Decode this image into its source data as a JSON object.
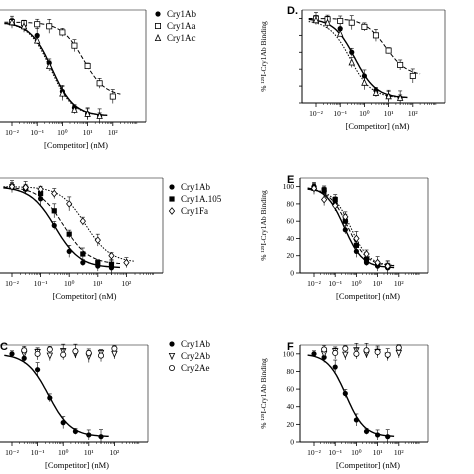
{
  "chart_data": [
    {
      "panel": "A",
      "panel_label": "",
      "type": "scatter",
      "xlabel": "[Competitor] (nM)",
      "ylabel": "",
      "x_scale": "log",
      "xlim": [
        0.01,
        1000
      ],
      "ylim": [
        0,
        110
      ],
      "x_tick_labels": [
        "10⁻²",
        "10⁻¹",
        "10⁰",
        "10¹",
        "10²"
      ],
      "y_tick_labels": [],
      "legend": [
        "Cry1Ab",
        "Cry1Aa",
        "Cry1Ac"
      ],
      "series": [
        {
          "name": "Cry1Ab",
          "marker": "filled-circle",
          "curve": "solid",
          "x": [
            0.01,
            0.03,
            0.1,
            0.3,
            1,
            3,
            10,
            30
          ],
          "y": [
            98,
            95,
            85,
            58,
            30,
            14,
            8,
            6
          ]
        },
        {
          "name": "Cry1Aa",
          "marker": "open-square",
          "curve": "dashed",
          "x": [
            0.01,
            0.03,
            0.1,
            0.3,
            1,
            3,
            10,
            30,
            100
          ],
          "y": [
            98,
            97,
            96,
            94,
            88,
            75,
            55,
            38,
            25
          ]
        },
        {
          "name": "Cry1Ac",
          "marker": "open-triangle",
          "curve": "dotted",
          "x": [
            0.01,
            0.03,
            0.1,
            0.3,
            1,
            3,
            10,
            30
          ],
          "y": [
            98,
            94,
            80,
            55,
            28,
            12,
            8,
            6
          ]
        }
      ]
    },
    {
      "panel": "D",
      "panel_label": "D.",
      "type": "scatter",
      "xlabel": "[Competitor] (nM)",
      "ylabel": "% ¹²⁵I-Cry1Ab Binding",
      "x_scale": "log",
      "xlim": [
        0.01,
        1000
      ],
      "ylim": [
        0,
        110
      ],
      "x_tick_labels": [
        "10⁻²",
        "10⁻¹",
        "10⁰",
        "10¹",
        "10²"
      ],
      "y_tick_labels": [],
      "legend": [],
      "series": [
        {
          "name": "",
          "marker": "filled-circle",
          "curve": "solid",
          "x": [
            0.01,
            0.03,
            0.1,
            0.3,
            1,
            3,
            10,
            30
          ],
          "y": [
            100,
            98,
            88,
            60,
            32,
            15,
            8,
            6
          ]
        },
        {
          "name": "",
          "marker": "open-square",
          "curve": "dashed",
          "x": [
            0.01,
            0.03,
            0.1,
            0.3,
            1,
            3,
            10,
            30,
            100
          ],
          "y": [
            100,
            99,
            97,
            95,
            90,
            80,
            62,
            45,
            32
          ]
        },
        {
          "name": "",
          "marker": "open-triangle",
          "curve": "dotted",
          "x": [
            0.01,
            0.03,
            0.1,
            0.3,
            1,
            3,
            10,
            30
          ],
          "y": [
            98,
            95,
            82,
            48,
            24,
            12,
            8,
            6
          ]
        }
      ]
    },
    {
      "panel": "B",
      "panel_label": "",
      "type": "scatter",
      "xlabel": "[Competitor] (nM)",
      "ylabel": "",
      "x_scale": "log",
      "xlim": [
        0.01,
        1000
      ],
      "ylim": [
        0,
        110
      ],
      "x_tick_labels": [
        "10⁻²",
        "10⁻¹",
        "10⁰",
        "10¹",
        "10²"
      ],
      "y_tick_labels": [],
      "legend": [
        "Cry1Ab",
        "Cry1A.105",
        "Cry1Fa"
      ],
      "series": [
        {
          "name": "Cry1Ab",
          "marker": "filled-circle",
          "curve": "solid",
          "x": [
            0.01,
            0.03,
            0.1,
            0.3,
            1,
            3,
            10,
            30
          ],
          "y": [
            100,
            97,
            86,
            55,
            25,
            12,
            8,
            6
          ]
        },
        {
          "name": "Cry1A.105",
          "marker": "filled-square",
          "curve": "dashed",
          "x": [
            0.01,
            0.03,
            0.1,
            0.3,
            1,
            3,
            10,
            30
          ],
          "y": [
            100,
            98,
            92,
            72,
            45,
            22,
            12,
            10
          ]
        },
        {
          "name": "Cry1Fa",
          "marker": "open-diamond",
          "curve": "dotted",
          "x": [
            0.01,
            0.03,
            0.1,
            0.3,
            1,
            3,
            10,
            30,
            100
          ],
          "y": [
            100,
            99,
            97,
            92,
            80,
            60,
            38,
            20,
            12
          ]
        }
      ]
    },
    {
      "panel": "E",
      "panel_label": "E",
      "type": "scatter",
      "xlabel": "[Competitor] (nM)",
      "ylabel": "% ¹²⁵I-Cry1Ab Binding",
      "x_scale": "log",
      "xlim": [
        0.01,
        1000
      ],
      "ylim": [
        0,
        110
      ],
      "x_tick_labels": [
        "10⁻²",
        "10⁻¹",
        "10⁰",
        "10¹",
        "10²"
      ],
      "y_tick_labels": [
        "0",
        "20",
        "40",
        "60",
        "80",
        "100"
      ],
      "legend": [],
      "series": [
        {
          "name": "",
          "marker": "filled-circle",
          "curve": "solid",
          "x": [
            0.01,
            0.03,
            0.1,
            0.3,
            1,
            3,
            10,
            30
          ],
          "y": [
            100,
            95,
            80,
            50,
            25,
            12,
            8,
            6
          ]
        },
        {
          "name": "",
          "marker": "filled-square",
          "curve": "dashed",
          "x": [
            0.01,
            0.03,
            0.1,
            0.3,
            1,
            3,
            10,
            30
          ],
          "y": [
            98,
            96,
            85,
            60,
            32,
            16,
            10,
            8
          ]
        },
        {
          "name": "",
          "marker": "open-diamond",
          "curve": "dotted",
          "x": [
            0.01,
            0.03,
            0.1,
            0.3,
            1,
            3,
            10,
            30
          ],
          "y": [
            98,
            85,
            78,
            65,
            40,
            22,
            12,
            8
          ]
        }
      ]
    },
    {
      "panel": "C",
      "panel_label": "C",
      "type": "scatter",
      "xlabel": "[Competitor] (nM)",
      "ylabel": "",
      "x_scale": "log",
      "xlim": [
        0.01,
        1000
      ],
      "ylim": [
        0,
        110
      ],
      "x_tick_labels": [
        "10⁻²",
        "10⁻¹",
        "10⁰",
        "10¹",
        "10²"
      ],
      "y_tick_labels": [],
      "legend": [
        "Cry1Ab",
        "Cry2Ab",
        "Cry2Ae"
      ],
      "series": [
        {
          "name": "Cry1Ab",
          "marker": "filled-circle",
          "curve": "solid",
          "x": [
            0.01,
            0.03,
            0.1,
            0.3,
            1,
            3,
            10,
            30
          ],
          "y": [
            100,
            95,
            82,
            50,
            22,
            12,
            8,
            6
          ]
        },
        {
          "name": "Cry2Ab",
          "marker": "open-triangle-down",
          "curve": "none",
          "x": [
            0.03,
            0.1,
            0.3,
            1,
            3,
            10,
            30,
            100
          ],
          "y": [
            100,
            102,
            98,
            103,
            100,
            97,
            101,
            100
          ]
        },
        {
          "name": "Cry2Ae",
          "marker": "open-circle",
          "curve": "none",
          "x": [
            0.03,
            0.1,
            0.3,
            1,
            3,
            10,
            30,
            100
          ],
          "y": [
            104,
            100,
            105,
            99,
            103,
            101,
            98,
            106
          ]
        }
      ]
    },
    {
      "panel": "F",
      "panel_label": "F",
      "type": "scatter",
      "xlabel": "[Competitor] (nM)",
      "ylabel": "% ¹²⁵I-Cry1Ab Binding",
      "x_scale": "log",
      "xlim": [
        0.01,
        1000
      ],
      "ylim": [
        0,
        110
      ],
      "x_tick_labels": [
        "10⁻²",
        "10⁻¹",
        "10⁰",
        "10¹",
        "10²"
      ],
      "y_tick_labels": [
        "0",
        "20",
        "40",
        "60",
        "80",
        "100"
      ],
      "legend": [],
      "series": [
        {
          "name": "",
          "marker": "filled-circle",
          "curve": "solid",
          "x": [
            0.01,
            0.03,
            0.1,
            0.3,
            1,
            3,
            10,
            30
          ],
          "y": [
            100,
            96,
            85,
            55,
            25,
            12,
            8,
            6
          ]
        },
        {
          "name": "",
          "marker": "open-triangle-down",
          "curve": "none",
          "x": [
            0.03,
            0.1,
            0.3,
            1,
            3,
            10,
            30,
            100
          ],
          "y": [
            100,
            103,
            99,
            104,
            100,
            102,
            98,
            101
          ]
        },
        {
          "name": "",
          "marker": "open-circle",
          "curve": "none",
          "x": [
            0.03,
            0.1,
            0.3,
            1,
            3,
            10,
            30,
            100
          ],
          "y": [
            105,
            101,
            106,
            100,
            104,
            102,
            99,
            107
          ]
        }
      ]
    }
  ]
}
